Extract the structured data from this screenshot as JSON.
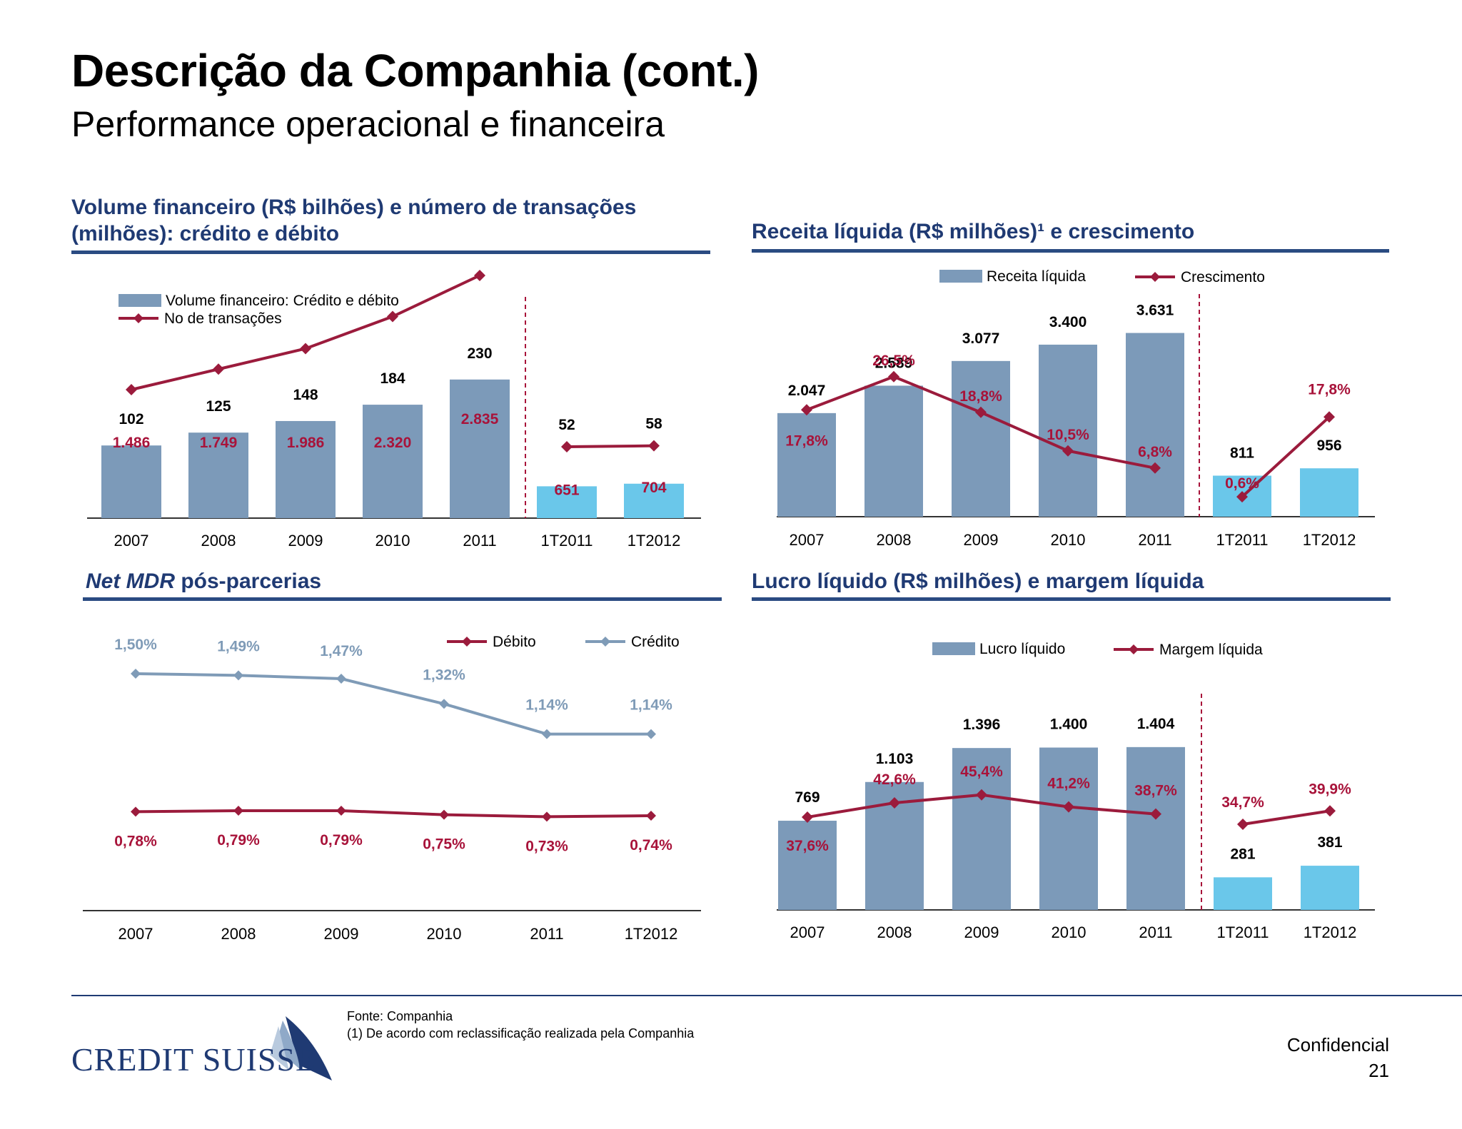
{
  "page": {
    "title": "Descrição da Companhia (cont.)",
    "subtitle": "Performance operacional e financeira"
  },
  "colors": {
    "bar_dark": "#7c9ab9",
    "bar_light": "#6ac7ea",
    "line_red": "#9b1b3c",
    "line_blue": "#7f9bb7",
    "label_red": "#a8133a",
    "navy": "#1f3a73"
  },
  "footer": {
    "source": "Fonte: Companhia",
    "note": "(1) De acordo com reclassificação realizada pela Companhia",
    "confidential": "Confidencial",
    "page_number": "21",
    "logo_text": "CREDIT SUISSE"
  },
  "chart_data": [
    {
      "type": "bar",
      "title": "Volume financeiro (R$ bilhões) e número de transações (milhões): crédito e débito",
      "categories": [
        "2007",
        "2008",
        "2009",
        "2010",
        "2011",
        "1T2011",
        "1T2012"
      ],
      "series": [
        {
          "name": "Volume financeiro: Crédito e débito",
          "type": "bar",
          "values": [
            1486,
            1749,
            1986,
            2320,
            2835,
            651,
            704
          ],
          "labels": [
            "1.486",
            "1.749",
            "1.986",
            "2.320",
            "2.835",
            "651",
            "704"
          ]
        },
        {
          "name": "No de transações",
          "type": "line",
          "values": [
            102,
            125,
            148,
            184,
            230,
            52,
            58
          ],
          "labels": [
            "102",
            "125",
            "148",
            "184",
            "230",
            "52",
            "58"
          ]
        }
      ],
      "legend": "top-left"
    },
    {
      "type": "bar",
      "title": "Receita líquida (R$ milhões)¹ e crescimento",
      "categories": [
        "2007",
        "2008",
        "2009",
        "2010",
        "2011",
        "1T2011",
        "1T2012"
      ],
      "series": [
        {
          "name": "Receita líquida",
          "type": "bar",
          "values": [
            2047,
            2589,
            3077,
            3400,
            3631,
            811,
            956
          ],
          "labels": [
            "2.047",
            "2.589",
            "3.077",
            "3.400",
            "3.631",
            "811",
            "956"
          ]
        },
        {
          "name": "Crescimento",
          "type": "line",
          "values": [
            17.8,
            26.5,
            18.8,
            10.5,
            6.8,
            0.6,
            17.8
          ],
          "labels": [
            "17,8%",
            "26,5%",
            "18,8%",
            "10,5%",
            "6,8%",
            "0,6%",
            "17,8%"
          ]
        }
      ],
      "legend": "top"
    },
    {
      "type": "line",
      "title": "Net MDR pós-parcerias",
      "title_italic": "Net MDR",
      "title_rest": " pós-parcerias",
      "categories": [
        "2007",
        "2008",
        "2009",
        "2010",
        "2011",
        "1T2012"
      ],
      "series": [
        {
          "name": "Débito",
          "values": [
            0.78,
            0.79,
            0.79,
            0.75,
            0.73,
            0.74
          ],
          "labels": [
            "0,78%",
            "0,79%",
            "0,79%",
            "0,75%",
            "0,73%",
            "0,74%"
          ]
        },
        {
          "name": "Crédito",
          "values": [
            1.5,
            1.49,
            1.47,
            1.32,
            1.14,
            1.14
          ],
          "labels": [
            "1,50%",
            "1,49%",
            "1,47%",
            "1,32%",
            "1,14%",
            "1,14%"
          ]
        }
      ],
      "legend": "top-right"
    },
    {
      "type": "bar",
      "title": "Lucro líquido (R$ milhões) e margem líquida",
      "categories": [
        "2007",
        "2008",
        "2009",
        "2010",
        "2011",
        "1T2011",
        "1T2012"
      ],
      "series": [
        {
          "name": "Lucro líquido",
          "type": "bar",
          "values": [
            769,
            1103,
            1396,
            1400,
            1404,
            281,
            381
          ],
          "labels": [
            "769",
            "1.103",
            "1.396",
            "1.400",
            "1.404",
            "281",
            "381"
          ]
        },
        {
          "name": "Margem líquida",
          "type": "line",
          "values": [
            37.6,
            42.6,
            45.4,
            41.2,
            38.7,
            34.7,
            39.9
          ],
          "labels": [
            "37,6%",
            "42,6%",
            "45,4%",
            "41,2%",
            "38,7%",
            "34,7%",
            "39,9%"
          ]
        }
      ],
      "legend": "top"
    }
  ]
}
